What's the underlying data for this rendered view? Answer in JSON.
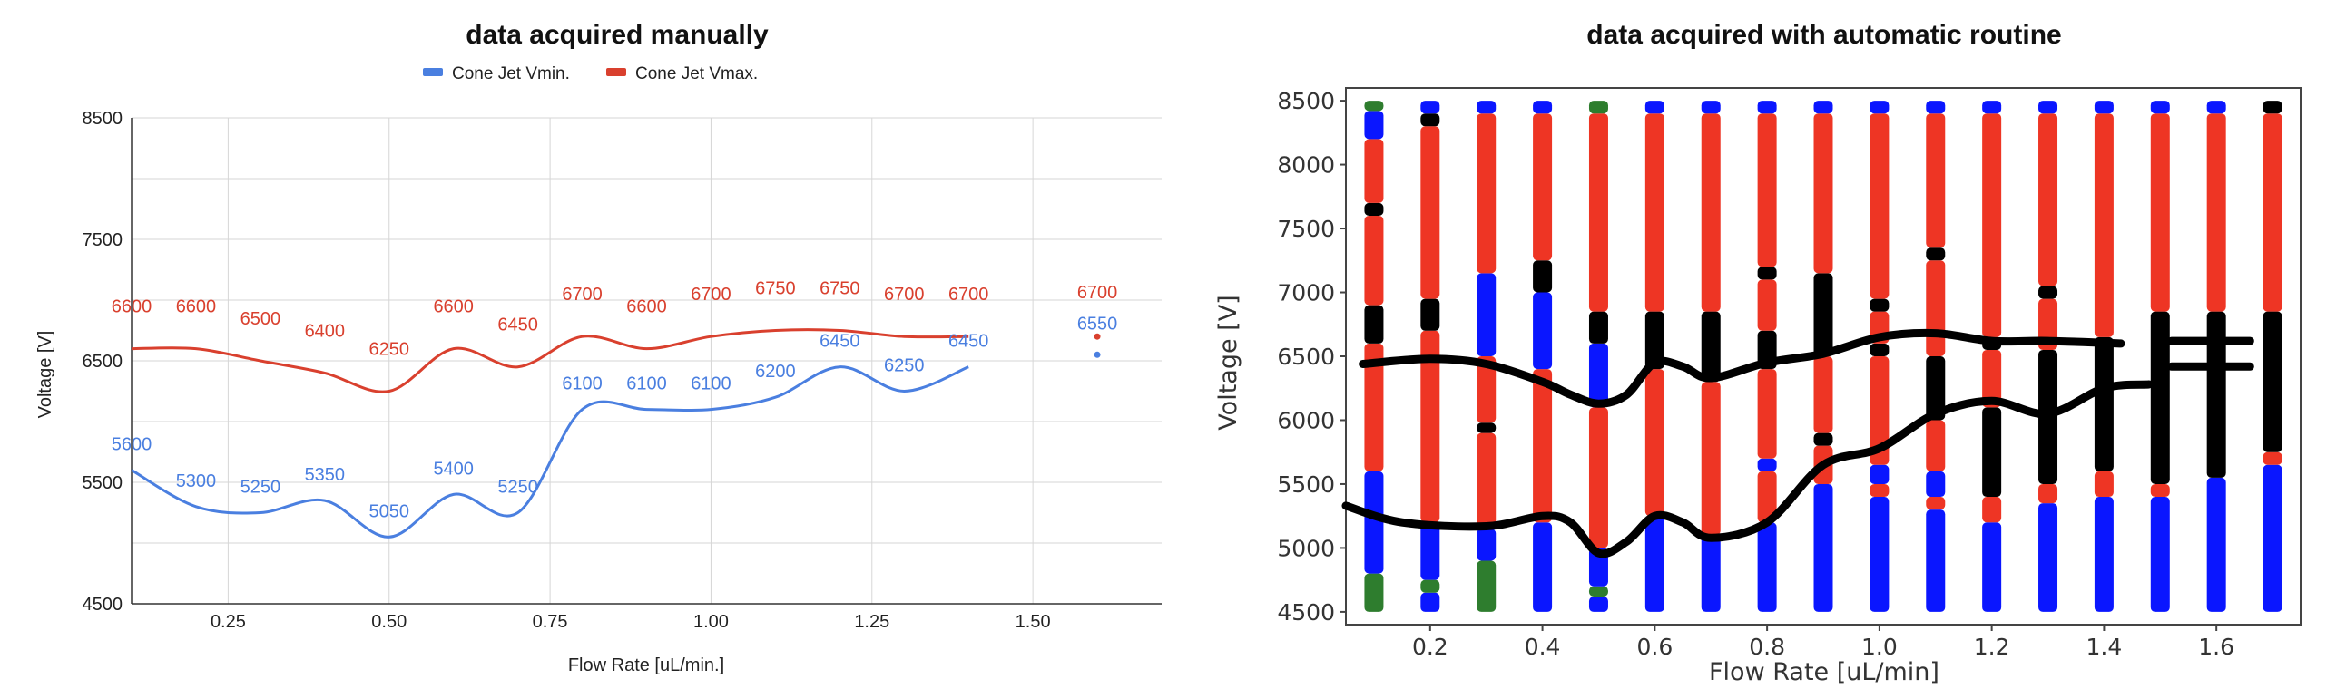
{
  "colors": {
    "vmin": "#4a7fe0",
    "vmax": "#d9402e",
    "blue_band": "#0a16ff",
    "red_band": "#ee3524",
    "black_band": "#000000",
    "green_band": "#2e7d2e"
  },
  "chart_data": [
    {
      "type": "line",
      "title": "data acquired manually",
      "xlabel": "Flow Rate [uL/min.]",
      "ylabel": "Voltage [V]",
      "xlim": [
        0.1,
        1.7
      ],
      "ylim": [
        4500,
        8500
      ],
      "x_ticks": [
        "0.25",
        "0.50",
        "0.75",
        "1.00",
        "1.25",
        "1.50"
      ],
      "y_ticks": [
        "4500",
        "5500",
        "6500",
        "7500",
        "8500"
      ],
      "grid": true,
      "legend_position": "top-center",
      "series": [
        {
          "name": "Cone Jet Vmin.",
          "x": [
            0.1,
            0.2,
            0.3,
            0.4,
            0.5,
            0.6,
            0.7,
            0.8,
            0.9,
            1.0,
            1.1,
            1.2,
            1.3,
            1.4,
            1.6
          ],
          "y": [
            5600,
            5300,
            5250,
            5350,
            5050,
            5400,
            5250,
            6100,
            6100,
            6100,
            6200,
            6450,
            6250,
            6450,
            6550
          ]
        },
        {
          "name": "Cone Jet Vmax.",
          "x": [
            0.1,
            0.2,
            0.3,
            0.4,
            0.5,
            0.6,
            0.7,
            0.8,
            0.9,
            1.0,
            1.1,
            1.2,
            1.3,
            1.4,
            1.6
          ],
          "y": [
            6600,
            6600,
            6500,
            6400,
            6250,
            6600,
            6450,
            6700,
            6600,
            6700,
            6750,
            6750,
            6700,
            6700,
            6700
          ]
        }
      ],
      "data_labels": {
        "vmin": [
          "5600",
          "5300",
          "5250",
          "5350",
          "5050",
          "5400",
          "5250",
          "6100",
          "6100",
          "6100",
          "6200",
          "6450",
          "6250",
          "6450",
          "6550"
        ],
        "vmax": [
          "6600",
          "6600",
          "6500",
          "6400",
          "6250",
          "6600",
          "6450",
          "6700",
          "6600",
          "6700",
          "6750",
          "6750",
          "6700",
          "6700",
          "6700"
        ]
      }
    },
    {
      "type": "scatter",
      "title": "data acquired with automatic routine",
      "xlabel": "Flow Rate [uL/min]",
      "ylabel": "Voltage [V]",
      "xlim": [
        0.05,
        1.75
      ],
      "ylim": [
        4400,
        8600
      ],
      "x_ticks": [
        "0.2",
        "0.4",
        "0.6",
        "0.8",
        "1.0",
        "1.2",
        "1.4",
        "1.6"
      ],
      "y_ticks": [
        "4500",
        "5000",
        "5500",
        "6000",
        "6500",
        "7000",
        "7500",
        "8000",
        "8500"
      ],
      "grid": false,
      "legend_position": "none",
      "columns": [
        {
          "x": 0.1,
          "bands": [
            [
              "green",
              4500,
              4800
            ],
            [
              "blue",
              4800,
              5600
            ],
            [
              "red",
              5600,
              6600
            ],
            [
              "black",
              6600,
              6900
            ],
            [
              "red",
              6900,
              7600
            ],
            [
              "black",
              7600,
              7700
            ],
            [
              "red",
              7700,
              8200
            ],
            [
              "blue",
              8200,
              8420
            ],
            [
              "green",
              8420,
              8500
            ]
          ]
        },
        {
          "x": 0.2,
          "bands": [
            [
              "blue",
              4500,
              4650
            ],
            [
              "green",
              4650,
              4750
            ],
            [
              "blue",
              4750,
              5200
            ],
            [
              "red",
              5200,
              6700
            ],
            [
              "black",
              6700,
              6950
            ],
            [
              "red",
              6950,
              8300
            ],
            [
              "black",
              8300,
              8400
            ],
            [
              "blue",
              8400,
              8500
            ]
          ]
        },
        {
          "x": 0.3,
          "bands": [
            [
              "green",
              4500,
              4900
            ],
            [
              "blue",
              4900,
              5150
            ],
            [
              "red",
              5150,
              5900
            ],
            [
              "black",
              5900,
              5980
            ],
            [
              "red",
              5980,
              6500
            ],
            [
              "blue",
              6500,
              7150
            ],
            [
              "red",
              7150,
              8400
            ],
            [
              "blue",
              8400,
              8500
            ]
          ]
        },
        {
          "x": 0.4,
          "bands": [
            [
              "blue",
              4500,
              5200
            ],
            [
              "red",
              5200,
              6400
            ],
            [
              "blue",
              6400,
              7000
            ],
            [
              "black",
              7000,
              7250
            ],
            [
              "red",
              7250,
              8400
            ],
            [
              "blue",
              8400,
              8500
            ]
          ]
        },
        {
          "x": 0.5,
          "bands": [
            [
              "blue",
              4500,
              4620
            ],
            [
              "green",
              4620,
              4700
            ],
            [
              "blue",
              4700,
              5000
            ],
            [
              "red",
              5000,
              6100
            ],
            [
              "blue",
              6100,
              6600
            ],
            [
              "black",
              6600,
              6850
            ],
            [
              "red",
              6850,
              8400
            ],
            [
              "green",
              8400,
              8500
            ]
          ]
        },
        {
          "x": 0.6,
          "bands": [
            [
              "blue",
              4500,
              5250
            ],
            [
              "red",
              5250,
              6400
            ],
            [
              "black",
              6400,
              6850
            ],
            [
              "red",
              6850,
              8400
            ],
            [
              "blue",
              8400,
              8500
            ]
          ]
        },
        {
          "x": 0.7,
          "bands": [
            [
              "blue",
              4500,
              5100
            ],
            [
              "red",
              5100,
              6300
            ],
            [
              "black",
              6300,
              6850
            ],
            [
              "red",
              6850,
              8400
            ],
            [
              "blue",
              8400,
              8500
            ]
          ]
        },
        {
          "x": 0.8,
          "bands": [
            [
              "blue",
              4500,
              5200
            ],
            [
              "red",
              5200,
              5600
            ],
            [
              "blue",
              5600,
              5700
            ],
            [
              "red",
              5700,
              6400
            ],
            [
              "black",
              6400,
              6700
            ],
            [
              "red",
              6700,
              7100
            ],
            [
              "black",
              7100,
              7200
            ],
            [
              "red",
              7200,
              8400
            ],
            [
              "blue",
              8400,
              8500
            ]
          ]
        },
        {
          "x": 0.9,
          "bands": [
            [
              "blue",
              4500,
              5500
            ],
            [
              "red",
              5500,
              5800
            ],
            [
              "black",
              5800,
              5900
            ],
            [
              "red",
              5900,
              6500
            ],
            [
              "black",
              6500,
              7150
            ],
            [
              "red",
              7150,
              8400
            ],
            [
              "blue",
              8400,
              8500
            ]
          ]
        },
        {
          "x": 1.0,
          "bands": [
            [
              "blue",
              4500,
              5400
            ],
            [
              "red",
              5400,
              5500
            ],
            [
              "blue",
              5500,
              5650
            ],
            [
              "red",
              5650,
              6500
            ],
            [
              "black",
              6500,
              6600
            ],
            [
              "red",
              6600,
              6850
            ],
            [
              "black",
              6850,
              6950
            ],
            [
              "red",
              6950,
              8400
            ],
            [
              "blue",
              8400,
              8500
            ]
          ]
        },
        {
          "x": 1.1,
          "bands": [
            [
              "blue",
              4500,
              5300
            ],
            [
              "red",
              5300,
              5400
            ],
            [
              "blue",
              5400,
              5600
            ],
            [
              "red",
              5600,
              6000
            ],
            [
              "black",
              6000,
              6500
            ],
            [
              "red",
              6500,
              7250
            ],
            [
              "black",
              7250,
              7350
            ],
            [
              "red",
              7350,
              8400
            ],
            [
              "blue",
              8400,
              8500
            ]
          ]
        },
        {
          "x": 1.2,
          "bands": [
            [
              "blue",
              4500,
              5200
            ],
            [
              "red",
              5200,
              5400
            ],
            [
              "black",
              5400,
              6100
            ],
            [
              "red",
              6100,
              6550
            ],
            [
              "black",
              6550,
              6650
            ],
            [
              "red",
              6650,
              8400
            ],
            [
              "blue",
              8400,
              8500
            ]
          ]
        },
        {
          "x": 1.3,
          "bands": [
            [
              "blue",
              4500,
              5350
            ],
            [
              "red",
              5350,
              5500
            ],
            [
              "black",
              5500,
              6550
            ],
            [
              "red",
              6550,
              6950
            ],
            [
              "black",
              6950,
              7050
            ],
            [
              "red",
              7050,
              8400
            ],
            [
              "blue",
              8400,
              8500
            ]
          ]
        },
        {
          "x": 1.4,
          "bands": [
            [
              "blue",
              4500,
              5400
            ],
            [
              "red",
              5400,
              5600
            ],
            [
              "black",
              5600,
              6650
            ],
            [
              "red",
              6650,
              8400
            ],
            [
              "blue",
              8400,
              8500
            ]
          ]
        },
        {
          "x": 1.5,
          "bands": [
            [
              "blue",
              4500,
              5400
            ],
            [
              "red",
              5400,
              5500
            ],
            [
              "black",
              5500,
              6850
            ],
            [
              "red",
              6850,
              8400
            ],
            [
              "blue",
              8400,
              8500
            ]
          ]
        },
        {
          "x": 1.6,
          "bands": [
            [
              "blue",
              4500,
              5550
            ],
            [
              "black",
              5550,
              6850
            ],
            [
              "red",
              6850,
              8400
            ],
            [
              "blue",
              8400,
              8500
            ]
          ]
        },
        {
          "x": 1.7,
          "bands": [
            [
              "blue",
              4500,
              5650
            ],
            [
              "red",
              5650,
              5750
            ],
            [
              "black",
              5750,
              6850
            ],
            [
              "red",
              6850,
              8400
            ],
            [
              "black",
              8400,
              8500
            ]
          ]
        }
      ],
      "boundary_curves": [
        {
          "x": [
            0.08,
            0.2,
            0.3,
            0.4,
            0.45,
            0.5,
            0.55,
            0.6,
            0.65,
            0.7,
            0.8,
            0.9,
            1.0,
            1.1,
            1.2,
            1.3,
            1.43
          ],
          "y": [
            6440,
            6480,
            6440,
            6300,
            6200,
            6130,
            6200,
            6450,
            6420,
            6330,
            6450,
            6520,
            6650,
            6680,
            6620,
            6620,
            6600
          ]
        },
        {
          "x": [
            1.52,
            1.66
          ],
          "y": [
            6620,
            6620
          ]
        },
        {
          "x": [
            0.05,
            0.15,
            0.3,
            0.4,
            0.45,
            0.5,
            0.55,
            0.6,
            0.65,
            0.7,
            0.8,
            0.9,
            1.0,
            1.1,
            1.2,
            1.3,
            1.4,
            1.48
          ],
          "y": [
            5330,
            5200,
            5170,
            5250,
            5200,
            4960,
            5050,
            5250,
            5200,
            5080,
            5200,
            5650,
            5780,
            6050,
            6150,
            6050,
            6250,
            6280
          ]
        },
        {
          "x": [
            1.52,
            1.66
          ],
          "y": [
            6420,
            6420
          ]
        }
      ]
    }
  ]
}
